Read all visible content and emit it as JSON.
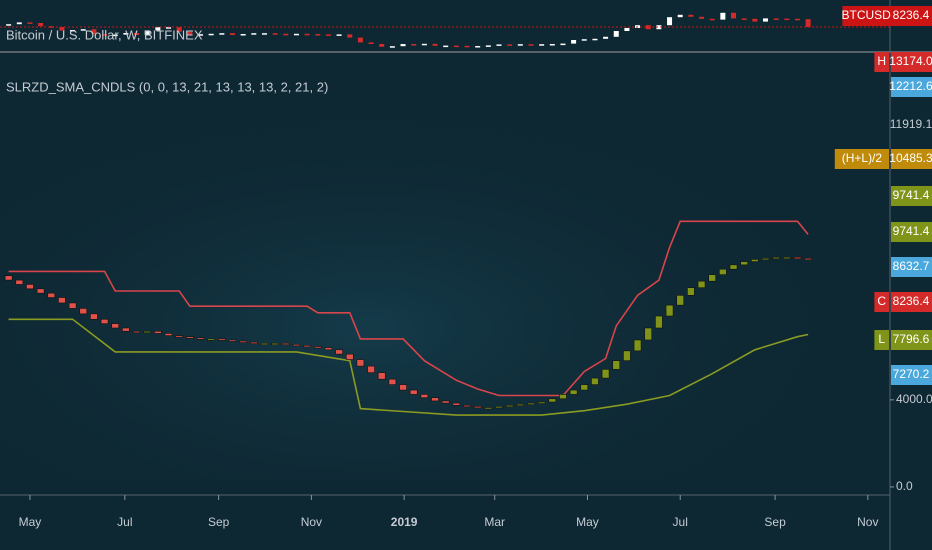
{
  "chart_data": [
    {
      "type": "candlestick",
      "title": "Bitcoin / U.S. Dollar, W, BITFINEX",
      "x": [
        -2,
        -1,
        0,
        1,
        2,
        3,
        4,
        5,
        6,
        7,
        8,
        9,
        10,
        11,
        12,
        13,
        14,
        15,
        16,
        17,
        18,
        19,
        20,
        21,
        22,
        23,
        24,
        25,
        26,
        27,
        28,
        29,
        30,
        31,
        32,
        33,
        34,
        35,
        36,
        37,
        38,
        39,
        40,
        41,
        42,
        43,
        44,
        45,
        46,
        47,
        48,
        49,
        50,
        51,
        52,
        53,
        54,
        55,
        56,
        57,
        58,
        59,
        60,
        61,
        62,
        63,
        64,
        65,
        66,
        67,
        68,
        69,
        70,
        71,
        72,
        73
      ],
      "open": [
        8700,
        8950,
        9400,
        9250,
        8450,
        8250,
        7350,
        7500,
        7700,
        6450,
        6150,
        6350,
        6750,
        6250,
        7400,
        8200,
        8200,
        7050,
        6300,
        6450,
        6550,
        6700,
        6250,
        6500,
        6700,
        6700,
        6550,
        6350,
        6550,
        6480,
        6400,
        6300,
        6400,
        5600,
        4400,
        4000,
        3300,
        3450,
        3990,
        3800,
        4050,
        3550,
        3600,
        3550,
        3450,
        3500,
        3650,
        3900,
        3800,
        3950,
        3900,
        3950,
        4000,
        4100,
        5000,
        5200,
        5300,
        5800,
        7250,
        8000,
        8700,
        7700,
        8700,
        10700,
        11300,
        10800,
        10300,
        10100,
        11800,
        10400,
        10300,
        9600,
        10400,
        10350,
        10300,
        10200
      ],
      "close": [
        8950,
        9400,
        9250,
        8450,
        8250,
        7350,
        7500,
        7700,
        6450,
        6150,
        6350,
        6750,
        6250,
        7400,
        8200,
        8200,
        7050,
        6300,
        6450,
        6550,
        6700,
        6250,
        6500,
        6700,
        6700,
        6550,
        6350,
        6550,
        6480,
        6400,
        6300,
        6400,
        5600,
        4400,
        4000,
        3300,
        3450,
        3990,
        3800,
        4050,
        3550,
        3600,
        3550,
        3450,
        3500,
        3650,
        3900,
        3800,
        3950,
        3900,
        3950,
        4000,
        4100,
        5000,
        5200,
        5300,
        5800,
        7250,
        8000,
        8700,
        7700,
        8700,
        10700,
        11300,
        10800,
        10300,
        10100,
        11800,
        10400,
        10300,
        9600,
        10400,
        10350,
        10300,
        10200,
        8236.4
      ],
      "up_color": "#ffffff",
      "down_color": "#d42a2a",
      "xlim": [
        -2.81,
        80.68
      ],
      "ylim": [
        3000,
        14000
      ],
      "price_tag": {
        "name": "BTCUSD",
        "value": 8236.4,
        "color": "#cc1414"
      }
    },
    {
      "type": "candlestick",
      "title": "SLRZD_SMA_CNDLS (0, 0, 13, 21, 13, 13, 13, 2, 21, 2)",
      "x": [
        -2,
        -1,
        0,
        1,
        2,
        3,
        4,
        5,
        6,
        7,
        8,
        9,
        10,
        11,
        12,
        13,
        14,
        15,
        16,
        17,
        18,
        19,
        20,
        21,
        22,
        23,
        24,
        25,
        26,
        27,
        28,
        29,
        30,
        31,
        32,
        33,
        34,
        35,
        36,
        37,
        38,
        39,
        40,
        41,
        42,
        43,
        44,
        45,
        46,
        47,
        48,
        49,
        50,
        51,
        52,
        53,
        54,
        55,
        56,
        57,
        58,
        59,
        60,
        61,
        62,
        63,
        64,
        65,
        66,
        67,
        68,
        69,
        70,
        71,
        72,
        73
      ],
      "open": [
        9700,
        9500,
        9300,
        9100,
        8900,
        8700,
        8450,
        8200,
        7950,
        7700,
        7500,
        7300,
        7150,
        7100,
        7150,
        7050,
        6950,
        6900,
        6850,
        6800,
        6800,
        6750,
        6700,
        6650,
        6600,
        6600,
        6600,
        6550,
        6500,
        6450,
        6400,
        6300,
        6100,
        5850,
        5550,
        5250,
        4950,
        4700,
        4450,
        4250,
        4100,
        3950,
        3850,
        3750,
        3700,
        3650,
        3650,
        3700,
        3750,
        3800,
        3850,
        3900,
        4050,
        4250,
        4450,
        4700,
        5000,
        5400,
        5800,
        6250,
        6750,
        7300,
        7850,
        8350,
        8800,
        9150,
        9450,
        9750,
        10000,
        10200,
        10350,
        10450,
        10500,
        10550,
        10550,
        10500
      ],
      "close": [
        9500,
        9300,
        9100,
        8900,
        8700,
        8450,
        8200,
        7950,
        7700,
        7500,
        7300,
        7150,
        7100,
        7150,
        7050,
        6950,
        6900,
        6850,
        6800,
        6800,
        6750,
        6700,
        6650,
        6600,
        6600,
        6600,
        6550,
        6500,
        6450,
        6400,
        6300,
        6100,
        5850,
        5550,
        5250,
        4950,
        4700,
        4450,
        4250,
        4100,
        3950,
        3850,
        3750,
        3700,
        3650,
        3650,
        3700,
        3750,
        3800,
        3850,
        3900,
        4050,
        4250,
        4450,
        4700,
        5000,
        5400,
        5800,
        6250,
        6750,
        7300,
        7850,
        8350,
        8800,
        9150,
        9450,
        9750,
        10000,
        10200,
        10350,
        10450,
        10500,
        10550,
        10550,
        10500,
        10450
      ],
      "up_color": "#7f9419",
      "down_color": "#e0524a",
      "bands": [
        {
          "color": "#d8454a",
          "x": [
            -2,
            7,
            8,
            14,
            15,
            26,
            27,
            30,
            31,
            35,
            37,
            40,
            42,
            44,
            50,
            52,
            54,
            55,
            57,
            59,
            60,
            61,
            72,
            73
          ],
          "values": [
            9900,
            9900,
            9000,
            9000,
            8300,
            8300,
            8000,
            8000,
            6800,
            6800,
            5800,
            4900,
            4500,
            4200,
            4200,
            5300,
            5900,
            7400,
            8800,
            9500,
            11000,
            12200,
            12200,
            11600
          ]
        },
        {
          "color": "#8a9a22",
          "x": [
            -2,
            4,
            8,
            25,
            30,
            31,
            40,
            48,
            52,
            56,
            60,
            64,
            68,
            72,
            73
          ],
          "values": [
            7700,
            7700,
            6200,
            6200,
            5800,
            3600,
            3300,
            3300,
            3500,
            3800,
            4200,
            5200,
            6300,
            6900,
            7000
          ]
        }
      ],
      "xlim": [
        -2.81,
        80.68
      ],
      "ylim": [
        -370,
        19700
      ],
      "yticks": [
        {
          "value": 4000,
          "label": "4000.0"
        },
        {
          "value": 0,
          "label": "0.0"
        }
      ],
      "xticks": [
        {
          "value": 0,
          "label": "May"
        },
        {
          "value": 8.9,
          "label": "Jul"
        },
        {
          "value": 17.7,
          "label": "Sep"
        },
        {
          "value": 26.4,
          "label": "Nov"
        },
        {
          "value": 35.1,
          "label": "2019"
        },
        {
          "value": 43.6,
          "label": "Mar"
        },
        {
          "value": 52.3,
          "label": "May"
        },
        {
          "value": 61,
          "label": "Jul"
        },
        {
          "value": 69.9,
          "label": "Sep"
        },
        {
          "value": 78.6,
          "label": "Nov"
        }
      ],
      "price_tags": [
        {
          "name": "H",
          "value": 13174,
          "label": "13174.0",
          "color": "#d42a2a"
        },
        {
          "value": 12212.6,
          "color": "#4aa8dc"
        },
        {
          "value": 11919.1
        },
        {
          "name": "(H+L)/2",
          "value": 10485.3,
          "color": "#c08a0a"
        },
        {
          "value": 9741.4,
          "color": "#7f9419"
        },
        {
          "value": 9741.4,
          "color": "#7f9419"
        },
        {
          "value": 8632.7,
          "color": "#4aa8dc"
        },
        {
          "name": "C",
          "value": 8236.4,
          "color": "#d42a2a"
        },
        {
          "name": "L",
          "value": 7796.6,
          "color": "#7f9419"
        },
        {
          "value": 7270.2,
          "color": "#4aa8dc"
        }
      ]
    }
  ]
}
